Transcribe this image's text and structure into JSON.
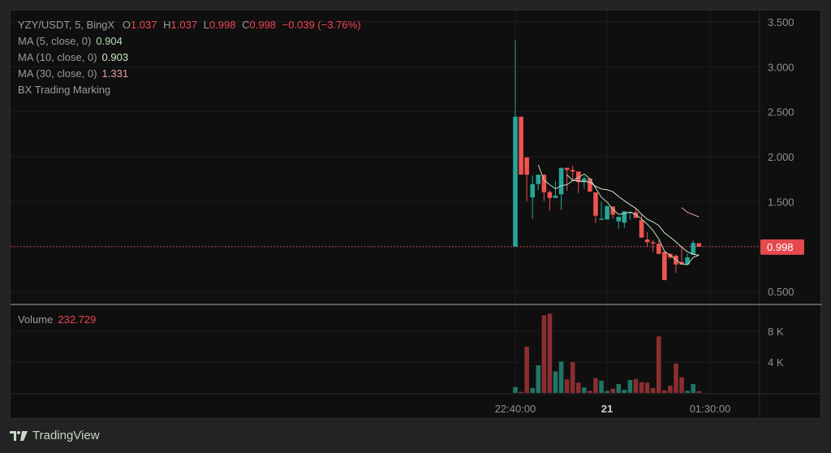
{
  "header": {
    "symbol": "YZY/USDT, 5, BingX",
    "open_label": "O",
    "open": "1.037",
    "high_label": "H",
    "high": "1.037",
    "low_label": "L",
    "low": "0.998",
    "close_label": "C",
    "close": "0.998",
    "change": "−0.039 (−3.76%)"
  },
  "indicators": [
    {
      "label": "MA (5, close, 0)",
      "value": "0.904",
      "color": "#b6dcb8"
    },
    {
      "label": "MA (10, close, 0)",
      "value": "0.903",
      "color": "#cfe8c6"
    },
    {
      "label": "MA (30, close, 0)",
      "value": "1.331",
      "color": "#e5a3a3"
    },
    {
      "label": "BX Trading Marking"
    }
  ],
  "volume_legend": {
    "label": "Volume",
    "value": "232.729"
  },
  "footer": {
    "brand": "TradingView"
  },
  "colors": {
    "up": "#26a69a",
    "down": "#ef5350",
    "vol_up": "#1f7566",
    "vol_down": "#8a2e31",
    "last_price": "#e5484d"
  },
  "chart_data": {
    "type": "candlestick",
    "title": "YZY/USDT, 5, BingX",
    "price_axis": {
      "ticks": [
        "3.500",
        "3.000",
        "2.500",
        "2.000",
        "1.500",
        "0.500"
      ],
      "range": [
        0.5,
        3.5
      ]
    },
    "last_price_label": "0.998",
    "volume_axis": {
      "ticks": [
        "8K",
        "4K"
      ],
      "unit": "K"
    },
    "time_ticks": [
      "22:40:00",
      "21",
      "01:30:00"
    ],
    "grid": true,
    "candles": [
      {
        "o": 1.0,
        "h": 3.3,
        "l": 1.0,
        "c": 2.445
      },
      {
        "o": 2.445,
        "h": 2.445,
        "l": 1.8,
        "c": 1.8
      },
      {
        "o": 1.993,
        "h": 1.993,
        "l": 1.505,
        "c": 1.8
      },
      {
        "o": 1.547,
        "h": 1.789,
        "l": 1.307,
        "c": 1.695
      },
      {
        "o": 1.695,
        "h": 1.8,
        "l": 1.627,
        "c": 1.8
      },
      {
        "o": 1.8,
        "h": 1.8,
        "l": 1.505,
        "c": 1.605
      },
      {
        "o": 1.605,
        "h": 1.627,
        "l": 1.4,
        "c": 1.541
      },
      {
        "o": 1.541,
        "h": 1.731,
        "l": 1.541,
        "c": 1.566
      },
      {
        "o": 1.581,
        "h": 1.876,
        "l": 1.406,
        "c": 1.876
      },
      {
        "o": 1.876,
        "h": 1.876,
        "l": 1.62,
        "c": 1.852
      },
      {
        "o": 1.852,
        "h": 1.9,
        "l": 1.747,
        "c": 1.834
      },
      {
        "o": 1.834,
        "h": 1.834,
        "l": 1.596,
        "c": 1.717
      },
      {
        "o": 1.717,
        "h": 1.78,
        "l": 1.641,
        "c": 1.758
      },
      {
        "o": 1.758,
        "h": 1.758,
        "l": 1.611,
        "c": 1.611
      },
      {
        "o": 1.602,
        "h": 1.602,
        "l": 1.259,
        "c": 1.343
      },
      {
        "o": 1.301,
        "h": 1.5,
        "l": 1.301,
        "c": 1.31
      },
      {
        "o": 1.301,
        "h": 1.451,
        "l": 1.301,
        "c": 1.451
      },
      {
        "o": 1.445,
        "h": 1.445,
        "l": 1.31,
        "c": 1.355
      },
      {
        "o": 1.28,
        "h": 1.331,
        "l": 1.198,
        "c": 1.331
      },
      {
        "o": 1.265,
        "h": 1.392,
        "l": 1.21,
        "c": 1.392
      },
      {
        "o": 1.38,
        "h": 1.386,
        "l": 1.3,
        "c": 1.386
      },
      {
        "o": 1.38,
        "h": 1.421,
        "l": 1.319,
        "c": 1.319
      },
      {
        "o": 1.295,
        "h": 1.355,
        "l": 1.099,
        "c": 1.099
      },
      {
        "o": 1.078,
        "h": 1.159,
        "l": 1.0,
        "c": 1.048
      },
      {
        "o": 1.048,
        "h": 1.07,
        "l": 0.94,
        "c": 1.045
      },
      {
        "o": 1.03,
        "h": 1.068,
        "l": 0.918,
        "c": 0.918
      },
      {
        "o": 0.94,
        "h": 0.94,
        "l": 0.626,
        "c": 0.626
      },
      {
        "o": 0.918,
        "h": 0.925,
        "l": 0.86,
        "c": 0.879
      },
      {
        "o": 0.898,
        "h": 0.91,
        "l": 0.708,
        "c": 0.8
      },
      {
        "o": 0.828,
        "h": 1.0,
        "l": 0.8,
        "c": 0.8
      },
      {
        "o": 0.8,
        "h": 0.92,
        "l": 0.8,
        "c": 0.879
      },
      {
        "o": 0.909,
        "h": 1.069,
        "l": 0.909,
        "c": 1.039
      },
      {
        "o": 1.037,
        "h": 1.037,
        "l": 0.998,
        "c": 0.998
      }
    ],
    "volumes_k": [
      0.77,
      0.14,
      6.0,
      0.63,
      3.58,
      10.07,
      10.28,
      2.8,
      4.07,
      1.75,
      4.0,
      1.33,
      0.7,
      0.28,
      1.93,
      1.58,
      0.25,
      0.56,
      1.16,
      0.42,
      1.68,
      1.82,
      1.4,
      1.33,
      0.63,
      7.33,
      0.35,
      0.95,
      3.82,
      2.03,
      0.28,
      1.16,
      0.233
    ],
    "moving_averages": [
      5,
      10,
      30
    ]
  }
}
